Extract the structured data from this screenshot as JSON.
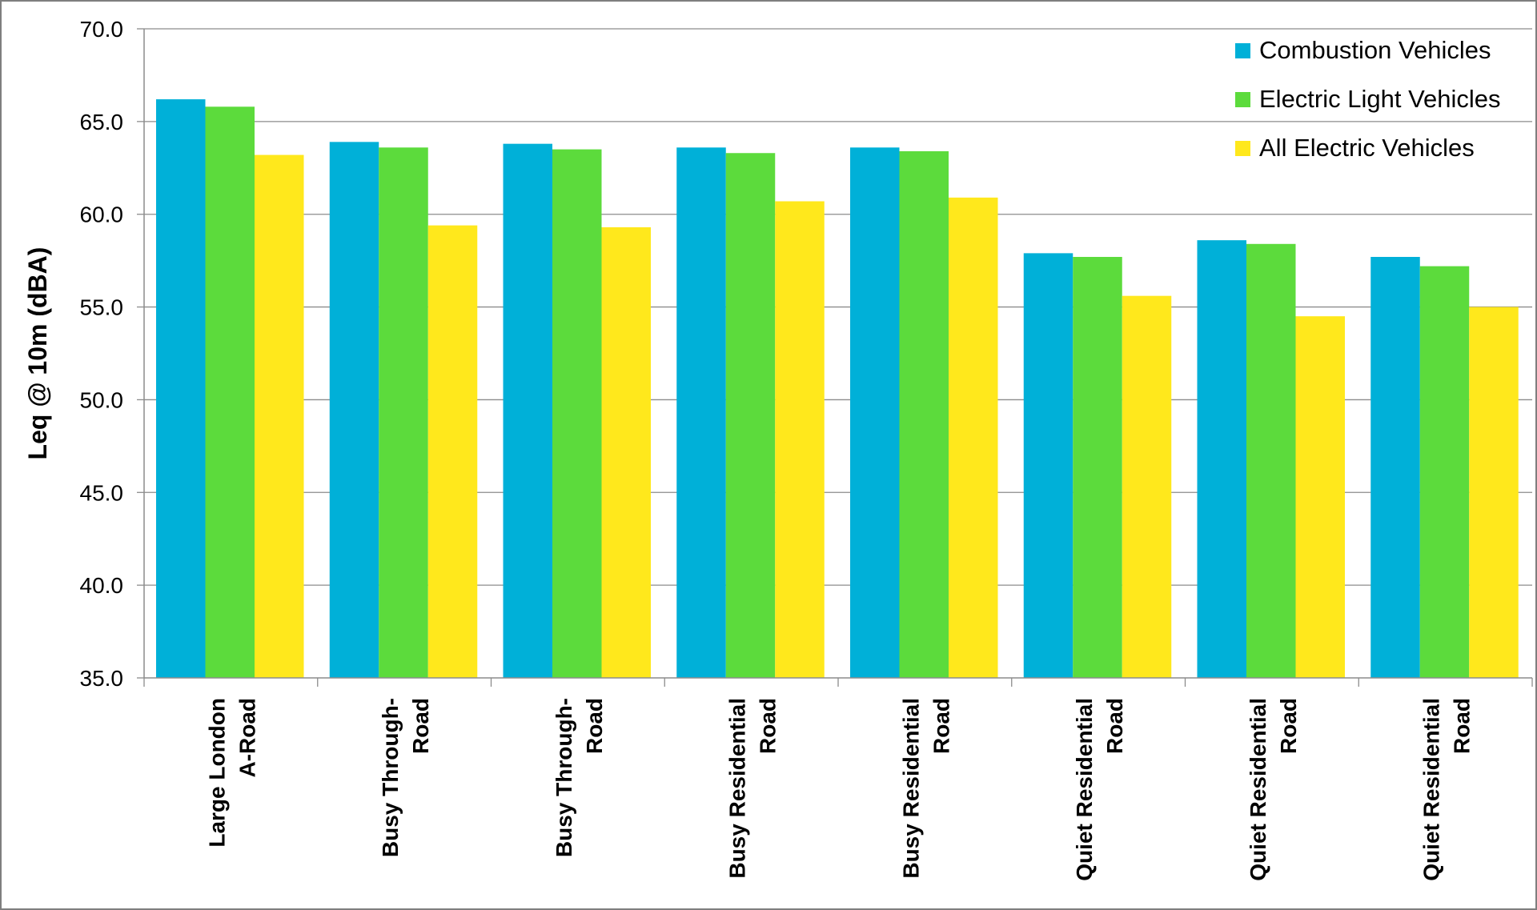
{
  "chart_data": {
    "type": "bar",
    "title": "",
    "xlabel": "",
    "ylabel": "Leq @ 10m (dBA)",
    "ylim": [
      35.0,
      70.0
    ],
    "yticks": [
      "35.0",
      "40.0",
      "45.0",
      "50.0",
      "55.0",
      "60.0",
      "65.0",
      "70.0"
    ],
    "grid": true,
    "legend_position": "top-right",
    "categories": [
      [
        "Large London",
        "A-Road"
      ],
      [
        "Busy Through-",
        "Road"
      ],
      [
        "Busy Through-",
        "Road"
      ],
      [
        "Busy Residential",
        "Road"
      ],
      [
        "Busy Residential",
        "Road"
      ],
      [
        "Quiet Residential",
        "Road"
      ],
      [
        "Quiet Residential",
        "Road"
      ],
      [
        "Quiet Residential",
        "Road"
      ]
    ],
    "series": [
      {
        "name": "Combustion Vehicles",
        "color": "#00b0d8",
        "values": [
          66.2,
          63.9,
          63.8,
          63.6,
          63.6,
          57.9,
          58.6,
          57.7
        ]
      },
      {
        "name": "Electric Light Vehicles",
        "color": "#5cdb3c",
        "values": [
          65.8,
          63.6,
          63.5,
          63.3,
          63.4,
          57.7,
          58.4,
          57.2
        ]
      },
      {
        "name": "All Electric Vehicles",
        "color": "#ffe81c",
        "values": [
          63.2,
          59.4,
          59.3,
          60.7,
          60.9,
          55.6,
          54.5,
          55.0
        ]
      }
    ]
  }
}
